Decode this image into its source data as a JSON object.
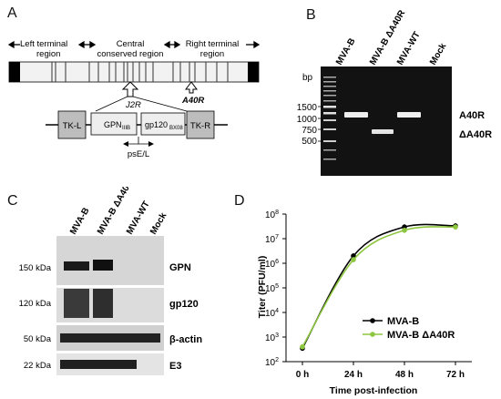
{
  "panels": {
    "A": {
      "letter": "A",
      "left_region": "Left terminal\nregion",
      "left_region_l1": "Left terminal",
      "left_region_l2": "region",
      "central_l1": "Central",
      "central_l2": "conserved region",
      "right_l1": "Right terminal",
      "right_l2": "region",
      "a40r": "A40R",
      "j2r": "J2R",
      "tkl": "TK-L",
      "tkr": "TK-R",
      "gpn": "GPN",
      "gpn_sub": "IIIB",
      "gp120": "gp120",
      "gp120_sub": "BX08",
      "promoter": "psE/L"
    },
    "B": {
      "letter": "B",
      "lanes": [
        "MVA-B",
        "MVA-B ΔA40R",
        "MVA-WT",
        "Mock"
      ],
      "bp_label": "bp",
      "ladder": [
        "1500",
        "1000",
        "750",
        "500"
      ],
      "band_labels": [
        "A40R",
        "ΔA40R"
      ]
    },
    "C": {
      "letter": "C",
      "lanes": [
        "MVA-B",
        "MVA-B ΔA40R",
        "MVA-WT",
        "Mock"
      ],
      "rows": [
        {
          "kda": "150 kDa",
          "protein": "GPN"
        },
        {
          "kda": "120 kDa",
          "protein": "gp120"
        },
        {
          "kda": "50 kDa",
          "protein": "β-actin"
        },
        {
          "kda": "22 kDa",
          "protein": "E3"
        }
      ]
    },
    "D": {
      "letter": "D"
    }
  },
  "chart_data": {
    "type": "line",
    "ylabel": "Titer (PFU/ml)",
    "xlabel": "Time post-infection",
    "x": [
      "0 h",
      "24 h",
      "48 h",
      "72 h"
    ],
    "yscale": "log",
    "ylim": [
      100,
      100000000
    ],
    "yticks": [
      "10^2",
      "10^3",
      "10^4",
      "10^5",
      "10^6",
      "10^7",
      "10^8"
    ],
    "series": [
      {
        "name": "MVA-B",
        "color": "#000000",
        "values": [
          350,
          2000000,
          30000000,
          33000000
        ]
      },
      {
        "name": "MVA-B ΔA40R",
        "color": "#8dc63f",
        "values": [
          400,
          1400000,
          22000000,
          30000000
        ]
      }
    ],
    "legend_position": "bottom-right"
  }
}
